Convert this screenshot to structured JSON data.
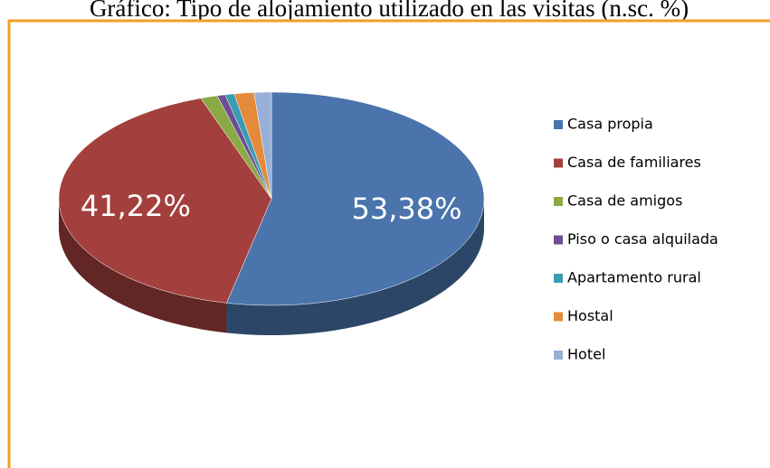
{
  "chart_data": {
    "type": "pie",
    "title": "Gráfico: Tipo de alojamiento utilizado en las visitas (n.sc. %)",
    "categories": [
      "Casa propia",
      "Casa de familiares",
      "Casa de amigos",
      "Piso o casa alquilada",
      "Apartamento rural",
      "Hostal",
      "Hotel"
    ],
    "values": [
      53.38,
      41.22,
      1.3,
      0.6,
      0.7,
      1.5,
      1.3
    ],
    "value_labels": [
      "53,38%",
      "41,22%",
      null,
      null,
      null,
      null,
      null
    ],
    "colors": [
      "#4a74ab",
      "#a33f3c",
      "#8aaa45",
      "#6c4f92",
      "#3b9bb3",
      "#e5893a",
      "#98afd6"
    ],
    "legend": "right"
  }
}
